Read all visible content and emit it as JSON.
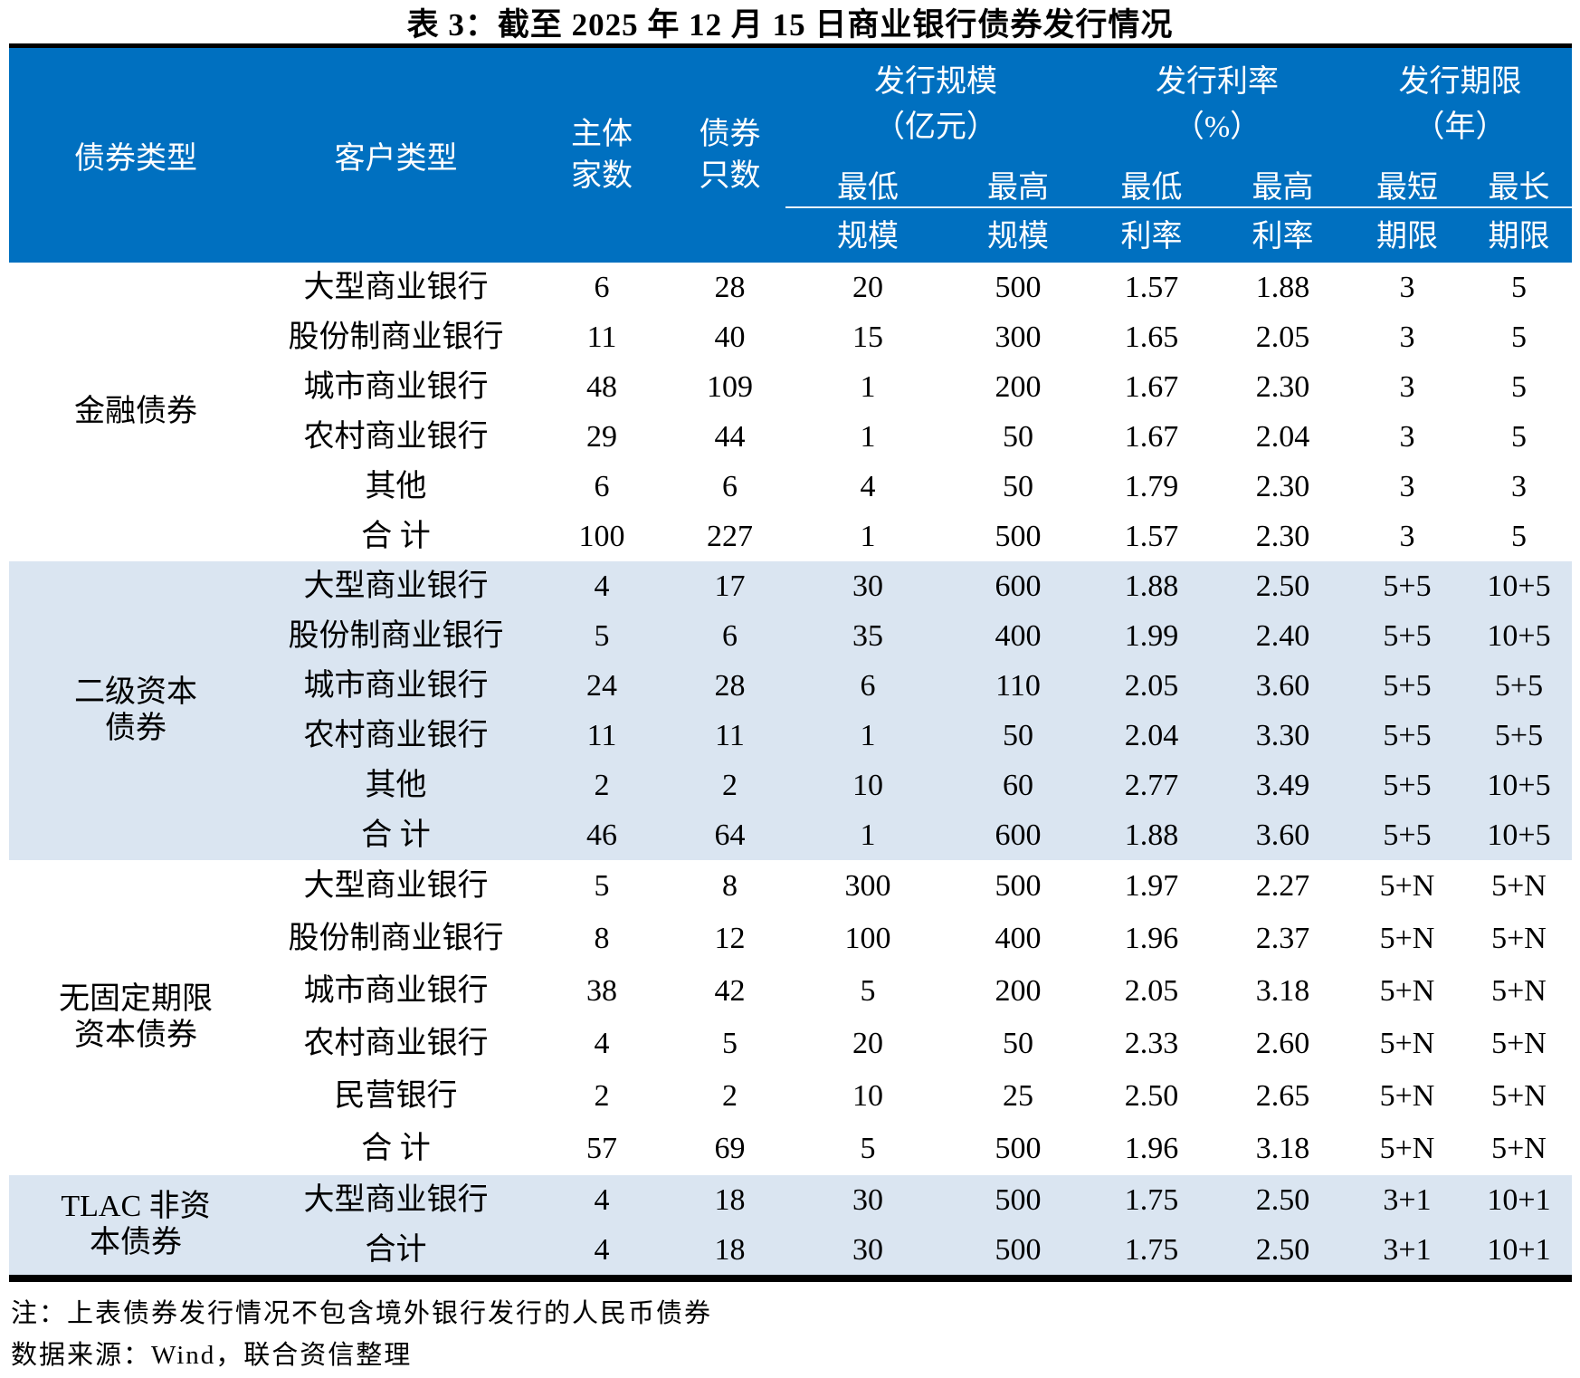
{
  "title": "表 3：截至 2025 年 12 月 15 日商业银行债券发行情况",
  "colors": {
    "header_bg": "#0070C0",
    "band_bg": "#DAE5F1",
    "rule": "#000000"
  },
  "table_header": {
    "bond_type": "债券类型",
    "customer_type": "客户类型",
    "issuer_line1": "主体",
    "issuer_line2": "家数",
    "bond_line1": "债券",
    "bond_line2": "只数",
    "groups": [
      {
        "title": "发行规模",
        "unit": "（亿元）"
      },
      {
        "title": "发行利率",
        "unit": "（%）"
      },
      {
        "title": "发行期限",
        "unit": "（年）"
      }
    ],
    "sub_top": [
      "最低",
      "最高",
      "最低",
      "最高",
      "最短",
      "最长"
    ],
    "sub_bottom": [
      "规模",
      "规模",
      "利率",
      "利率",
      "期限",
      "期限"
    ]
  },
  "sections": [
    {
      "type_lines": [
        "金融债券"
      ],
      "shaded": false,
      "rows": [
        {
          "customer": "大型商业银行",
          "values": [
            "6",
            "28",
            "20",
            "500",
            "1.57",
            "1.88",
            "3",
            "5"
          ]
        },
        {
          "customer": "股份制商业银行",
          "values": [
            "11",
            "40",
            "15",
            "300",
            "1.65",
            "2.05",
            "3",
            "5"
          ]
        },
        {
          "customer": "城市商业银行",
          "values": [
            "48",
            "109",
            "1",
            "200",
            "1.67",
            "2.30",
            "3",
            "5"
          ]
        },
        {
          "customer": "农村商业银行",
          "values": [
            "29",
            "44",
            "1",
            "50",
            "1.67",
            "2.04",
            "3",
            "5"
          ]
        },
        {
          "customer": "其他",
          "values": [
            "6",
            "6",
            "4",
            "50",
            "1.79",
            "2.30",
            "3",
            "3"
          ]
        },
        {
          "customer": "合 计",
          "values": [
            "100",
            "227",
            "1",
            "500",
            "1.57",
            "2.30",
            "3",
            "5"
          ]
        }
      ]
    },
    {
      "type_lines": [
        "二级资本",
        "债券"
      ],
      "shaded": true,
      "rows": [
        {
          "customer": "大型商业银行",
          "values": [
            "4",
            "17",
            "30",
            "600",
            "1.88",
            "2.50",
            "5+5",
            "10+5"
          ]
        },
        {
          "customer": "股份制商业银行",
          "values": [
            "5",
            "6",
            "35",
            "400",
            "1.99",
            "2.40",
            "5+5",
            "10+5"
          ]
        },
        {
          "customer": "城市商业银行",
          "values": [
            "24",
            "28",
            "6",
            "110",
            "2.05",
            "3.60",
            "5+5",
            "5+5"
          ]
        },
        {
          "customer": "农村商业银行",
          "values": [
            "11",
            "11",
            "1",
            "50",
            "2.04",
            "3.30",
            "5+5",
            "5+5"
          ]
        },
        {
          "customer": "其他",
          "values": [
            "2",
            "2",
            "10",
            "60",
            "2.77",
            "3.49",
            "5+5",
            "10+5"
          ]
        },
        {
          "customer": "合 计",
          "values": [
            "46",
            "64",
            "1",
            "600",
            "1.88",
            "3.60",
            "5+5",
            "10+5"
          ]
        }
      ]
    },
    {
      "type_lines": [
        "无固定期限",
        "资本债券"
      ],
      "shaded": false,
      "rows": [
        {
          "customer": "大型商业银行",
          "values": [
            "5",
            "8",
            "300",
            "500",
            "1.97",
            "2.27",
            "5+N",
            "5+N"
          ]
        },
        {
          "customer": "股份制商业银行",
          "values": [
            "8",
            "12",
            "100",
            "400",
            "1.96",
            "2.37",
            "5+N",
            "5+N"
          ]
        },
        {
          "customer": "城市商业银行",
          "values": [
            "38",
            "42",
            "5",
            "200",
            "2.05",
            "3.18",
            "5+N",
            "5+N"
          ]
        },
        {
          "customer": "农村商业银行",
          "values": [
            "4",
            "5",
            "20",
            "50",
            "2.33",
            "2.60",
            "5+N",
            "5+N"
          ]
        },
        {
          "customer": "民营银行",
          "values": [
            "2",
            "2",
            "10",
            "25",
            "2.50",
            "2.65",
            "5+N",
            "5+N"
          ]
        },
        {
          "customer": "合 计",
          "values": [
            "57",
            "69",
            "5",
            "500",
            "1.96",
            "3.18",
            "5+N",
            "5+N"
          ]
        }
      ]
    },
    {
      "type_lines": [
        "TLAC 非资",
        "本债券"
      ],
      "shaded": true,
      "rows": [
        {
          "customer": "大型商业银行",
          "values": [
            "4",
            "18",
            "30",
            "500",
            "1.75",
            "2.50",
            "3+1",
            "10+1"
          ]
        },
        {
          "customer": "合计",
          "values": [
            "4",
            "18",
            "30",
            "500",
            "1.75",
            "2.50",
            "3+1",
            "10+1"
          ]
        }
      ]
    }
  ],
  "notes": {
    "note": "注：上表债券发行情况不包含境外银行发行的人民币债券",
    "source": "数据来源：Wind，联合资信整理"
  }
}
